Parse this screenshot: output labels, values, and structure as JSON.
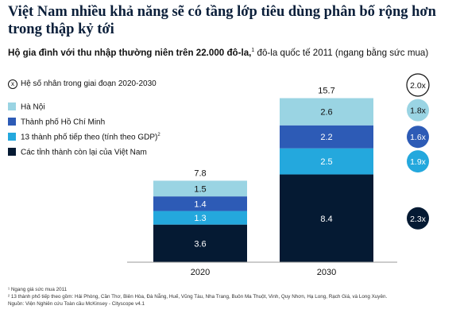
{
  "title": "Việt Nam nhiều khả năng sẽ có tầng lớp tiêu dùng phân bố rộng hơn trong thập kỷ tới",
  "subtitle": {
    "bold": "Hộ gia đình với thu nhập thường niên trên 22.000 đô-la,",
    "sup": "1",
    "rest": " đô-la quốc tế 2011 (ngang bằng sức mua)"
  },
  "legend": {
    "multiplier_icon": "x",
    "multiplier_label": "Hệ số nhân trong giai đoạn 2020-2030",
    "items": [
      {
        "label": "Hà Nội",
        "sup": "",
        "color": "#9ad4e3"
      },
      {
        "label": "Thành phố Hồ Chí Minh",
        "sup": "",
        "color": "#2d5bb6"
      },
      {
        "label": "13 thành phố tiếp theo (tính theo GDP)",
        "sup": "2",
        "color": "#24a8dd"
      },
      {
        "label": "Các tỉnh thành còn lại của Việt Nam",
        "sup": "",
        "color": "#051a33"
      }
    ]
  },
  "chart_data": {
    "type": "bar",
    "stacked": true,
    "categories": [
      "2020",
      "2030"
    ],
    "series": [
      {
        "name": "Các tỉnh thành còn lại của Việt Nam",
        "values": [
          3.6,
          8.4
        ],
        "labels": [
          "3.6",
          "8.4"
        ],
        "color": "#051a33",
        "label_color": "#ffffff"
      },
      {
        "name": "13 thành phố tiếp theo (tính theo GDP)",
        "values": [
          1.3,
          2.5
        ],
        "labels": [
          "1.3",
          "2.5"
        ],
        "color": "#24a8dd",
        "label_color": "#ffffff"
      },
      {
        "name": "Thành phố Hồ Chí Minh",
        "values": [
          1.4,
          2.2
        ],
        "labels": [
          "1.4",
          "2.2"
        ],
        "color": "#2d5bb6",
        "label_color": "#ffffff"
      },
      {
        "name": "Hà Nội",
        "values": [
          1.5,
          2.6
        ],
        "labels": [
          "1.5",
          "2.6"
        ],
        "color": "#9ad4e3",
        "label_color": "#111111"
      }
    ],
    "totals": [
      7.8,
      15.7
    ],
    "total_labels": [
      "7.8",
      "15.7"
    ],
    "multipliers": [
      {
        "label": "2.0x",
        "series": "total",
        "fill": "#ffffff",
        "text_color": "#111111",
        "stroke": "#111111"
      },
      {
        "label": "1.8x",
        "series": "Hà Nội",
        "fill": "#9ad4e3",
        "text_color": "#111111"
      },
      {
        "label": "1.6x",
        "series": "Thành phố Hồ Chí Minh",
        "fill": "#2d5bb6",
        "text_color": "#ffffff"
      },
      {
        "label": "1.9x",
        "series": "13 thành phố tiếp theo (tính theo GDP)",
        "fill": "#24a8dd",
        "text_color": "#ffffff"
      },
      {
        "label": "2.3x",
        "series": "Các tỉnh thành còn lại của Việt Nam",
        "fill": "#051a33",
        "text_color": "#ffffff"
      }
    ],
    "ylim": [
      0,
      16
    ],
    "grid": false,
    "legend_position": "top-left"
  },
  "footnotes": [
    "¹ Ngang giá sức mua 2011",
    "² 13 thành phố tiếp theo gồm: Hải Phòng, Cần Thơ, Biên Hòa, Đà Nẵng, Huế, Vũng Tàu, Nha Trang, Buôn Ma Thuột, Vinh, Quy Nhơn, Hạ Long, Rạch Giá, và Long Xuyên.",
    "Nguồn: Viện Nghiên cứu Toàn cầu McKinsey - Cityscope v4.1"
  ]
}
